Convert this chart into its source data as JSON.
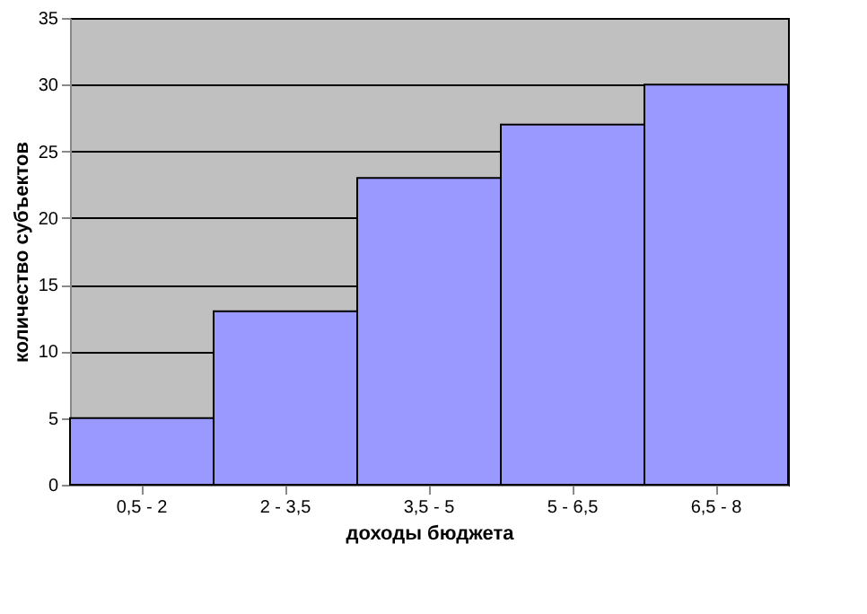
{
  "chart_data": {
    "type": "bar",
    "xlabel": "доходы бюджета",
    "ylabel": "количество субъектов",
    "categories": [
      "0,5 - 2",
      "2 - 3,5",
      "3,5 - 5",
      "5 - 6,5",
      "6,5 - 8"
    ],
    "values": [
      5,
      13,
      23,
      27,
      30
    ],
    "color": "#9999ff",
    "ylim": [
      0,
      35
    ],
    "yticks": [
      0,
      5,
      10,
      15,
      20,
      25,
      30,
      35
    ],
    "grid": "y"
  }
}
